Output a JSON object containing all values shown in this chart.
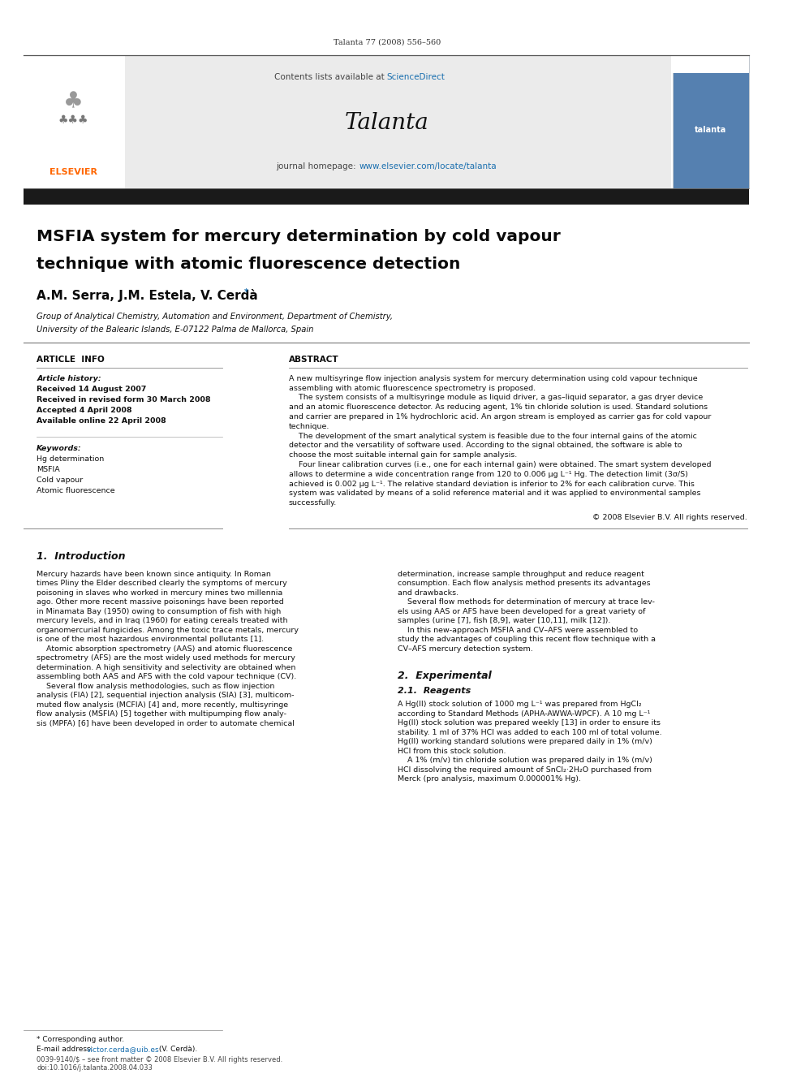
{
  "page_width": 9.92,
  "page_height": 13.23,
  "bg_color": "#ffffff",
  "journal_ref": "Talanta 77 (2008) 556–560",
  "header_bg": "#ebebeb",
  "header_text1_plain": "Contents lists available at ",
  "header_text1_link": "ScienceDirect",
  "header_journal": "Talanta",
  "header_url_prefix": "journal homepage: ",
  "header_url": "www.elsevier.com/locate/talanta",
  "dark_bar_color": "#1a1a1a",
  "elsevier_color": "#ff6600",
  "sciencedirect_color": "#1a6faf",
  "url_color": "#1a6faf",
  "article_title_line1": "MSFIA system for mercury determination by cold vapour",
  "article_title_line2": "technique with atomic fluorescence detection",
  "authors_plain": "A.M. Serra, J.M. Estela, V. Cerdà",
  "affiliation1": "Group of Analytical Chemistry, Automation and Environment, Department of Chemistry,",
  "affiliation2": "University of the Balearic Islands, E-07122 Palma de Mallorca, Spain",
  "section_article_info": "ARTICLE  INFO",
  "section_abstract": "ABSTRACT",
  "article_history_label": "Article history:",
  "received1": "Received 14 August 2007",
  "received2": "Received in revised form 30 March 2008",
  "accepted": "Accepted 4 April 2008",
  "available": "Available online 22 April 2008",
  "keywords_label": "Keywords:",
  "keyword1": "Hg determination",
  "keyword2": "MSFIA",
  "keyword3": "Cold vapour",
  "keyword4": "Atomic fluorescence",
  "copyright": "© 2008 Elsevier B.V. All rights reserved.",
  "intro_heading": "1.  Introduction",
  "experimental_heading": "2.  Experimental",
  "reagents_heading": "2.1.  Reagents",
  "footnote_star": "* Corresponding author.",
  "footnote_email_label": "E-mail address: ",
  "footnote_email": "victor.cerda@uib.es",
  "footnote_email_suffix": " (V. Cerdà).",
  "footer_issn": "0039-9140/$ – see front matter © 2008 Elsevier B.V. All rights reserved.",
  "footer_doi": "doi:10.1016/j.talanta.2008.04.033",
  "abs_lines": [
    "A new multisyringe flow injection analysis system for mercury determination using cold vapour technique",
    "assembling with atomic fluorescence spectrometry is proposed.",
    "    The system consists of a multisyringe module as liquid driver, a gas–liquid separator, a gas dryer device",
    "and an atomic fluorescence detector. As reducing agent, 1% tin chloride solution is used. Standard solutions",
    "and carrier are prepared in 1% hydrochloric acid. An argon stream is employed as carrier gas for cold vapour",
    "technique.",
    "    The development of the smart analytical system is feasible due to the four internal gains of the atomic",
    "detector and the versatility of software used. According to the signal obtained, the software is able to",
    "choose the most suitable internal gain for sample analysis.",
    "    Four linear calibration curves (i.e., one for each internal gain) were obtained. The smart system developed",
    "allows to determine a wide concentration range from 120 to 0.006 μg L⁻¹ Hg. The detection limit (3σ/S)",
    "achieved is 0.002 μg L⁻¹. The relative standard deviation is inferior to 2% for each calibration curve. This",
    "system was validated by means of a solid reference material and it was applied to environmental samples",
    "successfully."
  ],
  "intro_col1": [
    "Mercury hazards have been known since antiquity. In Roman",
    "times Pliny the Elder described clearly the symptoms of mercury",
    "poisoning in slaves who worked in mercury mines two millennia",
    "ago. Other more recent massive poisonings have been reported",
    "in Minamata Bay (1950) owing to consumption of fish with high",
    "mercury levels, and in Iraq (1960) for eating cereals treated with",
    "organomercurial fungicides. Among the toxic trace metals, mercury",
    "is one of the most hazardous environmental pollutants [1].",
    "    Atomic absorption spectrometry (AAS) and atomic fluorescence",
    "spectrometry (AFS) are the most widely used methods for mercury",
    "determination. A high sensitivity and selectivity are obtained when",
    "assembling both AAS and AFS with the cold vapour technique (CV).",
    "    Several flow analysis methodologies, such as flow injection",
    "analysis (FIA) [2], sequential injection analysis (SIA) [3], multicom-",
    "muted flow analysis (MCFIA) [4] and, more recently, multisyringe",
    "flow analysis (MSFIA) [5] together with multipumping flow analy-",
    "sis (MPFA) [6] have been developed in order to automate chemical"
  ],
  "intro_col2": [
    "determination, increase sample throughput and reduce reagent",
    "consumption. Each flow analysis method presents its advantages",
    "and drawbacks.",
    "    Several flow methods for determination of mercury at trace lev-",
    "els using AAS or AFS have been developed for a great variety of",
    "samples (urine [7], fish [8,9], water [10,11], milk [12]).",
    "    In this new-approach MSFIA and CV–AFS were assembled to",
    "study the advantages of coupling this recent flow technique with a",
    "CV–AFS mercury detection system."
  ],
  "reagents_col2": [
    "A Hg(II) stock solution of 1000 mg L⁻¹ was prepared from HgCl₂",
    "according to Standard Methods (APHA-AWWA-WPCF). A 10 mg L⁻¹",
    "Hg(II) stock solution was prepared weekly [13] in order to ensure its",
    "stability. 1 ml of 37% HCl was added to each 100 ml of total volume.",
    "Hg(II) working standard solutions were prepared daily in 1% (m/v)",
    "HCl from this stock solution.",
    "    A 1% (m/v) tin chloride solution was prepared daily in 1% (m/v)",
    "HCl dissolving the required amount of SnCl₂·2H₂O purchased from",
    "Merck (pro analysis, maximum 0.000001% Hg)."
  ]
}
